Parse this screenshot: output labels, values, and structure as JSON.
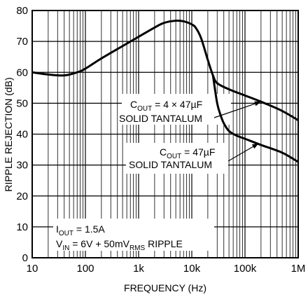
{
  "chart_data": {
    "type": "line",
    "xlabel": "FREQUENCY (Hz)",
    "ylabel": "RIPPLE REJECTION (dB)",
    "x_scale": "log",
    "xlim": [
      10,
      1000000
    ],
    "ylim": [
      0,
      80
    ],
    "grid": true,
    "x_ticks": [
      {
        "value": 10,
        "label": "10"
      },
      {
        "value": 100,
        "label": "100"
      },
      {
        "value": 1000,
        "label": "1k"
      },
      {
        "value": 10000,
        "label": "10k"
      },
      {
        "value": 100000,
        "label": "100k"
      },
      {
        "value": 1000000,
        "label": "1M"
      }
    ],
    "y_ticks": [
      0,
      10,
      20,
      30,
      40,
      50,
      60,
      70,
      80
    ],
    "series": [
      {
        "name": "COUT = 4 × 47µF SOLID TANTALUM",
        "points": [
          [
            10,
            60
          ],
          [
            20,
            59.3
          ],
          [
            40,
            59
          ],
          [
            70,
            60
          ],
          [
            100,
            61.2
          ],
          [
            200,
            64.5
          ],
          [
            500,
            68.5
          ],
          [
            1000,
            71.5
          ],
          [
            2000,
            74.5
          ],
          [
            3000,
            76
          ],
          [
            5000,
            76.7
          ],
          [
            7000,
            76.5
          ],
          [
            10000,
            75.5
          ],
          [
            12000,
            74.3
          ],
          [
            15000,
            71
          ],
          [
            20000,
            64
          ],
          [
            25000,
            59
          ],
          [
            30000,
            56.5
          ],
          [
            50000,
            54.5
          ],
          [
            100000,
            52.5
          ],
          [
            200000,
            50.5
          ],
          [
            500000,
            47.5
          ],
          [
            1000000,
            44.5
          ]
        ]
      },
      {
        "name": "COUT = 47µF SOLID TANTALUM",
        "points": [
          [
            25000,
            59
          ],
          [
            30000,
            50
          ],
          [
            35000,
            46
          ],
          [
            40000,
            43.5
          ],
          [
            50000,
            41
          ],
          [
            70000,
            39.5
          ],
          [
            100000,
            38.5
          ],
          [
            200000,
            36.5
          ],
          [
            500000,
            34
          ],
          [
            1000000,
            31
          ]
        ]
      }
    ],
    "annotations": {
      "label_4x47": {
        "cout": "C",
        "cout_sub": "OUT",
        "rest": " = 4 × 47µF",
        "line2": "SOLID TANTALUM",
        "arrow_to": [
          200000,
          50.5
        ]
      },
      "label_47": {
        "cout": "C",
        "cout_sub": "OUT",
        "rest": " = 47µF",
        "line2": "SOLID TANTALUM",
        "arrow_to": [
          180000,
          37
        ]
      },
      "conditions": {
        "iout": "I",
        "iout_sub": "OUT",
        "iout_rest": " = 1.5A",
        "vin": "V",
        "vin_sub": "IN",
        "vin_mid": " = 6V + 50mV",
        "vin_sub2": "RMS",
        "vin_rest": " RIPPLE"
      }
    }
  }
}
